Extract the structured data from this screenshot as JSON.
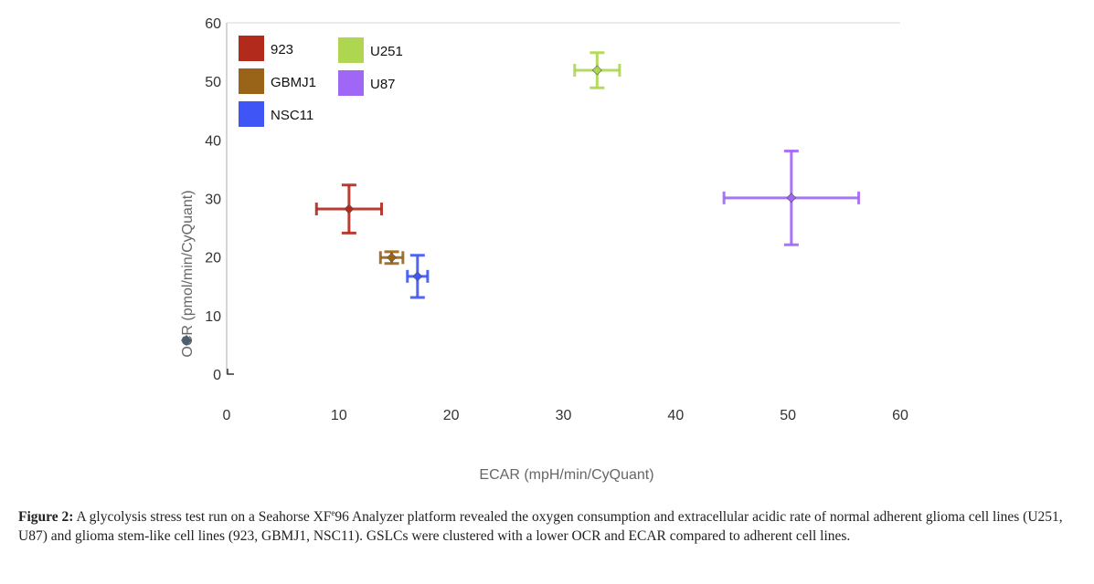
{
  "chart_data": {
    "type": "scatter",
    "xlabel": "ECAR (mpH/min/CyQuant)",
    "ylabel": "OCR (pmol/min/CyQuant)",
    "xlim": [
      0,
      60
    ],
    "ylim": [
      0,
      60
    ],
    "xticks": [
      "0",
      "10",
      "20",
      "30",
      "40",
      "50",
      "60"
    ],
    "yticks": [
      "0",
      "10",
      "20",
      "30",
      "40",
      "50",
      "60"
    ],
    "legend_position": "top-left",
    "series": [
      {
        "name": "923",
        "color": "#b22a1c",
        "x": 10.9,
        "y": 28.2,
        "xerr": 2.9,
        "yerr": 4.1
      },
      {
        "name": "GBMJ1",
        "color": "#9a6418",
        "x": 14.7,
        "y": 19.9,
        "xerr": 1.0,
        "yerr": 1.0
      },
      {
        "name": "NSC11",
        "color": "#4055f5",
        "x": 17.0,
        "y": 16.7,
        "xerr": 0.9,
        "yerr": 3.6
      },
      {
        "name": "U251",
        "color": "#aed650",
        "x": 33.0,
        "y": 51.9,
        "xerr": 2.0,
        "yerr": 3.0
      },
      {
        "name": "U87",
        "color": "#a066f5",
        "x": 50.3,
        "y": 30.1,
        "xerr": 6.0,
        "yerr": 8.0
      }
    ]
  },
  "caption": {
    "label": "Figure 2:",
    "text_before_sup": " A glycolysis stress test run on a Seahorse XF",
    "sup": "e",
    "text_after_sup": "96 Analyzer platform revealed the oxygen consumption and extracellular acidic rate of normal adherent glioma cell lines (U251, U87) and glioma stem-like cell lines (923, GBMJ1, NSC11). GSLCs were clustered with a lower OCR and ECAR compared to adherent cell lines."
  }
}
